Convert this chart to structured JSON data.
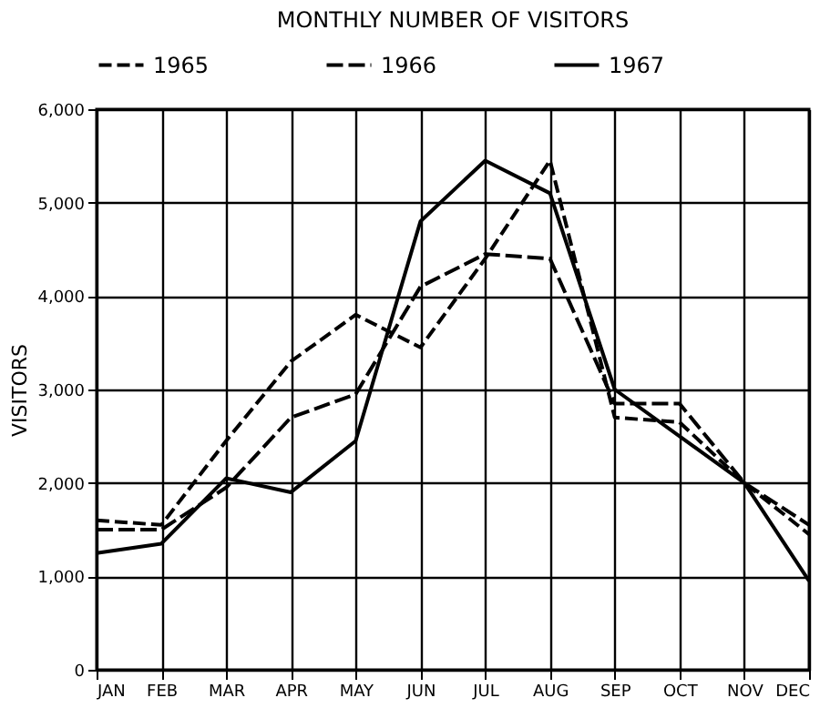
{
  "chart_data": {
    "type": "line",
    "title": "MONTHLY NUMBER OF VISITORS",
    "ylabel": "VISITORS",
    "categories": [
      "JAN",
      "FEB",
      "MAR",
      "APR",
      "MAY",
      "JUN",
      "JUL",
      "AUG",
      "SEP",
      "OCT",
      "NOV",
      "DEC"
    ],
    "series": [
      {
        "name": "1965",
        "color": "#000000",
        "line_style": "dashed",
        "values": [
          1600,
          1550,
          2450,
          3300,
          3800,
          3450,
          4400,
          5450,
          2700,
          2650,
          2000,
          1450
        ]
      },
      {
        "name": "1966",
        "color": "#000000",
        "line_style": "dashed",
        "values": [
          1500,
          1500,
          1950,
          2700,
          2950,
          4100,
          4450,
          4400,
          2850,
          2850,
          2000,
          1550
        ]
      },
      {
        "name": "1967",
        "color": "#000000",
        "line_style": "solid",
        "values": [
          1250,
          1350,
          2050,
          1900,
          2450,
          4800,
          5450,
          5100,
          3000,
          2500,
          2000,
          950
        ]
      }
    ],
    "ylim": [
      0,
      6000
    ],
    "yticks": [
      0,
      {
        "value": 1000,
        "label": "1,000"
      },
      {
        "value": 2000,
        "label": "2,000"
      },
      {
        "value": 3000,
        "label": "3,000"
      },
      {
        "value": 4000,
        "label": "4,000"
      },
      {
        "value": 5000,
        "label": "5,000"
      },
      {
        "value": 6000,
        "label": "6,000"
      }
    ],
    "grid": true,
    "legend": "top",
    "marker": "none"
  }
}
